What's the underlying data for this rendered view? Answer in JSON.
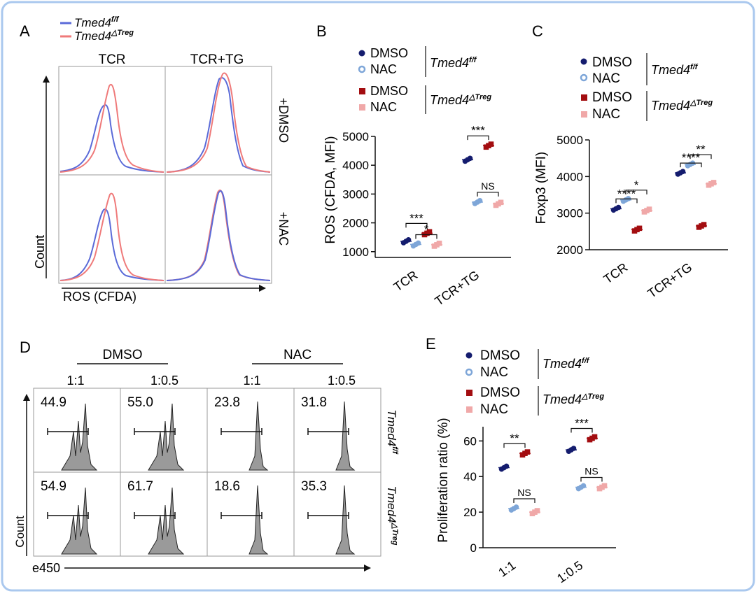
{
  "frame_color": "#aac8ee",
  "colors": {
    "wt_dmso": "#141c6e",
    "wt_nac": "#7ea6d8",
    "ko_dmso": "#a30d10",
    "ko_nac": "#f0a8a8",
    "hist_wt": "#5a6ad8",
    "hist_ko": "#ef7a7a",
    "hist_fill": "#9a9a9a"
  },
  "labels": {
    "wt_base": "Tmed4",
    "wt_sup": "f/f",
    "ko_base": "Tmed4",
    "ko_sup": "△Treg",
    "dmso": "DMSO",
    "nac": "NAC"
  },
  "panels": {
    "A": {
      "letter": "A",
      "cols": [
        "TCR",
        "TCR+TG"
      ],
      "rows": [
        "+DMSO",
        "+NAC"
      ],
      "xlabel": "ROS (CFDA)",
      "ylabel": "Count"
    },
    "D": {
      "letter": "D",
      "groups": [
        "DMSO",
        "NAC"
      ],
      "ratios": [
        "1:1",
        "1:0.5",
        "1:1",
        "1:0.5"
      ],
      "values": [
        [
          "44.9",
          "55.0",
          "23.8",
          "31.8"
        ],
        [
          "54.9",
          "61.7",
          "18.6",
          "35.3"
        ]
      ],
      "xlabel": "e450",
      "ylabel": "Count"
    }
  },
  "chart_data": [
    {
      "panel": "B",
      "type": "scatter",
      "title": "",
      "ylabel": "ROS (CFDA, MFI)",
      "xlabel": "",
      "categories": [
        "TCR",
        "TCR+TG"
      ],
      "ylim": [
        800,
        5000
      ],
      "yticks": [
        1000,
        2000,
        3000,
        4000,
        5000
      ],
      "series": [
        {
          "name": "DMSO Tmed4 f/f",
          "values": [
            1360,
            4190
          ]
        },
        {
          "name": "NAC Tmed4 f/f",
          "values": [
            1250,
            2720
          ]
        },
        {
          "name": "DMSO Tmed4 △Treg",
          "values": [
            1640,
            4680
          ]
        },
        {
          "name": "NAC Tmed4 △Treg",
          "values": [
            1240,
            2660
          ]
        }
      ],
      "significance": [
        {
          "category": "TCR",
          "pair": "DMSO",
          "label": "***"
        },
        {
          "category": "TCR",
          "pair": "NAC",
          "label": "*"
        },
        {
          "category": "TCR+TG",
          "pair": "DMSO",
          "label": "***"
        },
        {
          "category": "TCR+TG",
          "pair": "NAC",
          "label": "NS"
        }
      ]
    },
    {
      "panel": "C",
      "type": "scatter",
      "title": "",
      "ylabel": "Foxp3 (MFI)",
      "xlabel": "",
      "categories": [
        "TCR",
        "TCR+TG"
      ],
      "ylim": [
        2000,
        5000
      ],
      "yticks": [
        2000,
        3000,
        4000,
        5000
      ],
      "series": [
        {
          "name": "DMSO Tmed4 f/f",
          "values": [
            3120,
            4100
          ]
        },
        {
          "name": "NAC Tmed4 f/f",
          "values": [
            3360,
            4330
          ]
        },
        {
          "name": "DMSO Tmed4 △Treg",
          "values": [
            2550,
            2650
          ]
        },
        {
          "name": "NAC Tmed4 △Treg",
          "values": [
            3070,
            3800
          ]
        }
      ],
      "significance": [
        {
          "category": "TCR",
          "pair": "DMSO",
          "label": "****"
        },
        {
          "category": "TCR",
          "pair": "NAC",
          "label": "*"
        },
        {
          "category": "TCR+TG",
          "pair": "DMSO",
          "label": "****"
        },
        {
          "category": "TCR+TG",
          "pair": "NAC",
          "label": "**"
        }
      ]
    },
    {
      "panel": "E",
      "type": "scatter",
      "title": "",
      "ylabel": "Proliferation ratio (%)",
      "xlabel": "",
      "categories": [
        "1:1",
        "1:0.5"
      ],
      "ylim": [
        0,
        68
      ],
      "yticks": [
        0,
        20,
        40,
        60
      ],
      "series": [
        {
          "name": "DMSO Tmed4 f/f",
          "values": [
            45,
            55
          ]
        },
        {
          "name": "NAC Tmed4 f/f",
          "values": [
            22,
            34
          ]
        },
        {
          "name": "DMSO Tmed4 △Treg",
          "values": [
            53,
            61.5
          ]
        },
        {
          "name": "NAC Tmed4 △Treg",
          "values": [
            20,
            34
          ]
        }
      ],
      "significance": [
        {
          "category": "1:1",
          "pair": "DMSO",
          "label": "**"
        },
        {
          "category": "1:1",
          "pair": "NAC",
          "label": "NS"
        },
        {
          "category": "1:0.5",
          "pair": "DMSO",
          "label": "***"
        },
        {
          "category": "1:0.5",
          "pair": "NAC",
          "label": "NS"
        }
      ]
    }
  ]
}
